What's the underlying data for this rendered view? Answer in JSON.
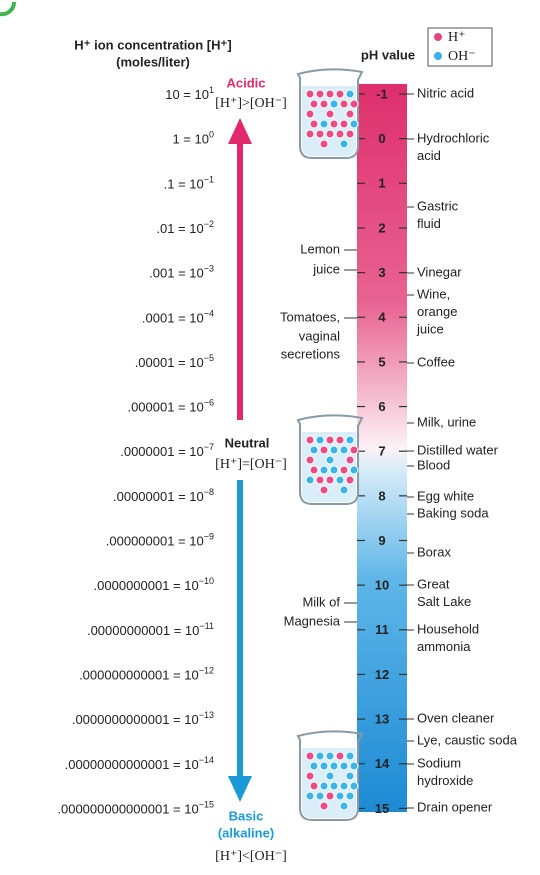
{
  "header": {
    "title": "H⁺ ion concentration [H⁺]",
    "units": "(moles/liter)",
    "ph_label": "pH value"
  },
  "legend": {
    "h": "H⁺",
    "oh": "OH⁻"
  },
  "concentrations": [
    {
      "text": "10 = 10",
      "exp": "1"
    },
    {
      "text": "1 = 10",
      "exp": "0"
    },
    {
      "text": ".1 = 10",
      "exp": "−1"
    },
    {
      "text": ".01 = 10",
      "exp": "−2"
    },
    {
      "text": ".001 = 10",
      "exp": "−3"
    },
    {
      "text": ".0001 = 10",
      "exp": "−4"
    },
    {
      "text": ".00001 = 10",
      "exp": "−5"
    },
    {
      "text": ".000001 = 10",
      "exp": "−6"
    },
    {
      "text": ".0000001 = 10",
      "exp": "−7"
    },
    {
      "text": ".00000001 = 10",
      "exp": "−8"
    },
    {
      "text": ".000000001 = 10",
      "exp": "−9"
    },
    {
      "text": ".0000000001 = 10",
      "exp": "−10"
    },
    {
      "text": ".00000000001 = 10",
      "exp": "−11"
    },
    {
      "text": ".000000000001 = 10",
      "exp": "−12"
    },
    {
      "text": ".0000000000001 = 10",
      "exp": "−13"
    },
    {
      "text": ".00000000000001 = 10",
      "exp": "−14"
    },
    {
      "text": ".000000000000001 = 10",
      "exp": "−15"
    }
  ],
  "ph_scale": [
    "-1",
    "0",
    "1",
    "2",
    "3",
    "4",
    "5",
    "6",
    "7",
    "8",
    "9",
    "10",
    "11",
    "12",
    "13",
    "14",
    "15"
  ],
  "acidic": {
    "label": "Acidic",
    "relation": "[H⁺]>[OH⁻]"
  },
  "neutral": {
    "label": "Neutral",
    "relation": "[H⁺]=[OH⁻]"
  },
  "basic": {
    "label": "Basic",
    "sub": "(alkaline)",
    "relation": "[H⁺]<[OH⁻]"
  },
  "right_labels": [
    {
      "lines": [
        "Nitric acid"
      ]
    },
    {
      "lines": [
        "Hydrochloric",
        "acid"
      ]
    },
    {
      "lines": [
        "Gastric",
        "fluid"
      ]
    },
    {
      "lines": [
        "Vinegar"
      ]
    },
    {
      "lines": [
        "Wine,",
        "orange",
        "juice"
      ]
    },
    {
      "lines": [
        "Coffee"
      ]
    },
    {
      "lines": [
        "Milk, urine"
      ]
    },
    {
      "lines": [
        "Distilled water"
      ]
    },
    {
      "lines": [
        "Blood"
      ]
    },
    {
      "lines": [
        "Egg white"
      ]
    },
    {
      "lines": [
        "Baking soda"
      ]
    },
    {
      "lines": [
        "Borax"
      ]
    },
    {
      "lines": [
        "Great",
        "Salt Lake"
      ]
    },
    {
      "lines": [
        "Household",
        "ammonia"
      ]
    },
    {
      "lines": [
        "Oven cleaner"
      ]
    },
    {
      "lines": [
        "Lye, caustic soda"
      ]
    },
    {
      "lines": [
        "Sodium",
        "hydroxide"
      ]
    },
    {
      "lines": [
        "Drain opener"
      ]
    }
  ],
  "left_labels": [
    {
      "lines": [
        "Lemon",
        "juice"
      ]
    },
    {
      "lines": [
        "Tomatoes,",
        "vaginal",
        "secretions"
      ]
    },
    {
      "lines": [
        "Milk of",
        "Magnesia"
      ]
    }
  ]
}
